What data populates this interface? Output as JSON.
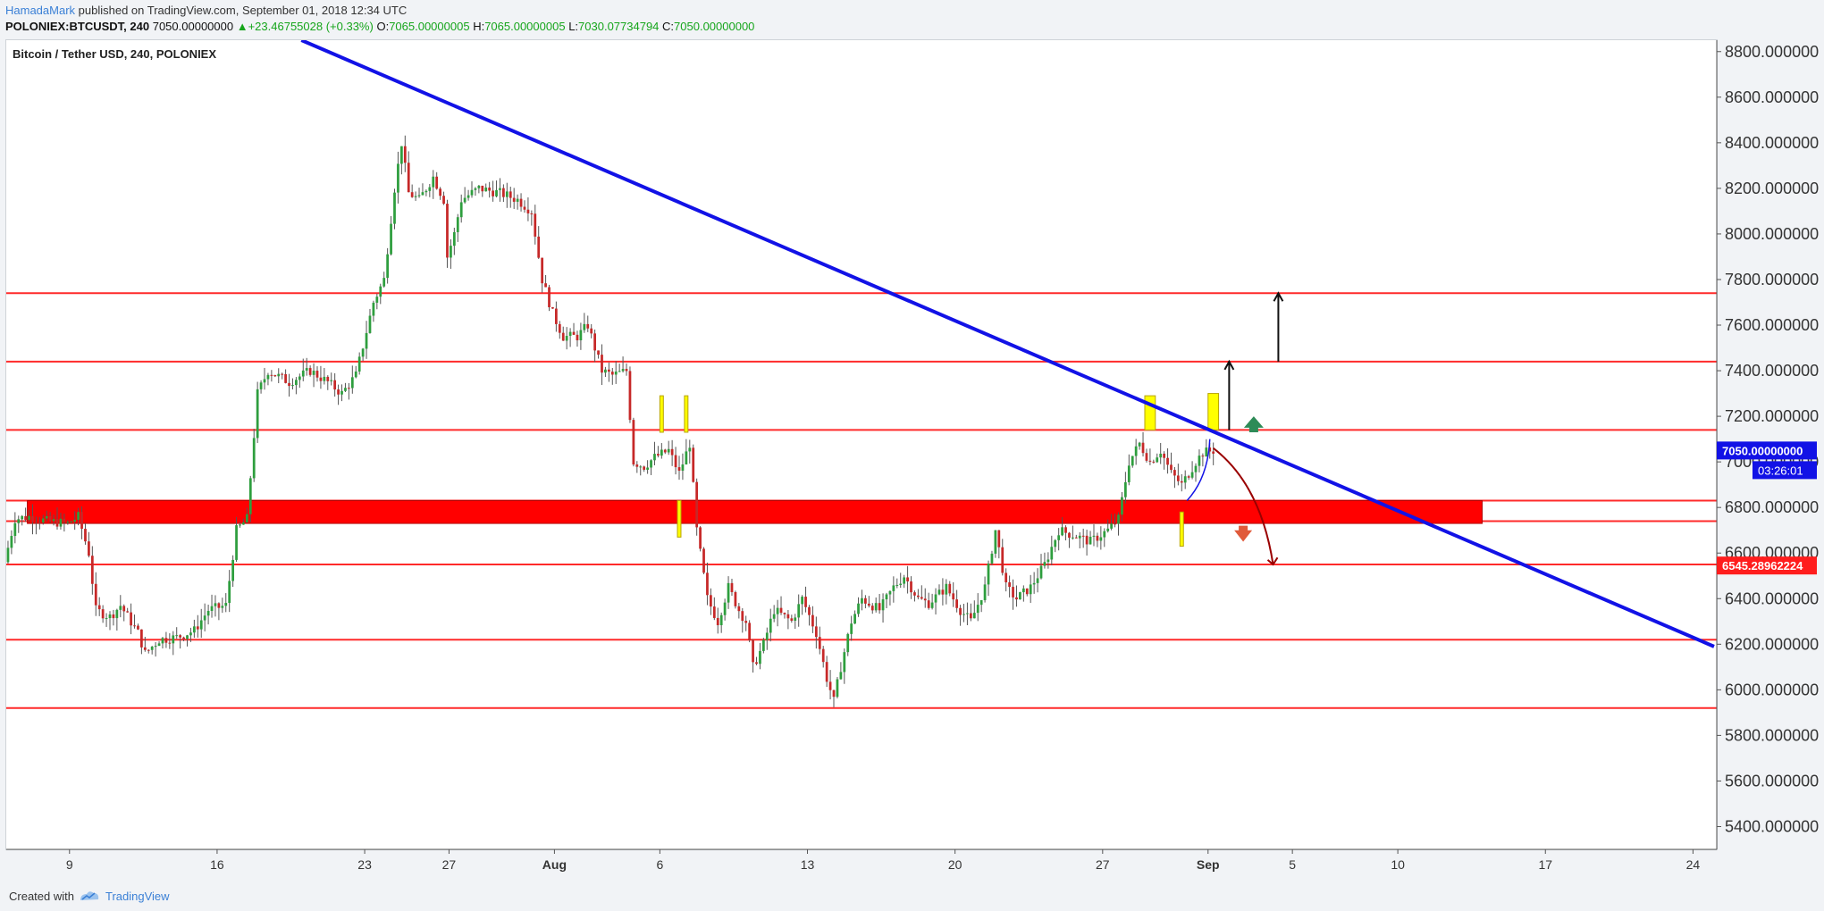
{
  "header": {
    "author": "HamadaMark",
    "published_text": " published on TradingView.com, September 01, 2018 12:34 UTC",
    "symbol_line": "POLONIEX:BTCUSDT, 240",
    "last": "7050.00000000",
    "change": "+23.46755028 (+0.33%)",
    "o_label": "O:",
    "o_value": "7065.00000005",
    "h_label": "H:",
    "h_value": "7065.00000005",
    "l_label": "L:",
    "l_value": "7030.07734794",
    "c_label": "C:",
    "c_value": "7050.00000000",
    "colors": {
      "author": "#3b80d6",
      "up": "#16a51b"
    }
  },
  "footer": {
    "created_with": "Created with",
    "brand": "TradingView"
  },
  "chart_data": {
    "type": "candlestick",
    "title": "Bitcoin / Tether USD, 240, POLONIEX",
    "y_axis": {
      "range": [
        5300,
        8850
      ],
      "ticks": [
        5400,
        5600,
        5800,
        6000,
        6200,
        6400,
        6600,
        6800,
        7000,
        7200,
        7400,
        7600,
        7800,
        8000,
        8200,
        8400,
        8600,
        8800
      ],
      "tick_labels": [
        "5400.000000",
        "5600.000000",
        "5800.000000",
        "6000.000000",
        "6200.000000",
        "6400.000000",
        "6600.000000",
        "6800.000000",
        "7000.000000",
        "7200.000000",
        "7400.000000",
        "7600.000000",
        "7800.000000",
        "8000.000000",
        "8200.000000",
        "8400.000000",
        "8600.000000",
        "8800.000000"
      ],
      "side": "right"
    },
    "x_axis": {
      "range": [
        "2018-07-06",
        "2018-09-25"
      ],
      "ticks": [
        {
          "date": "2018-07-09",
          "label": "9"
        },
        {
          "date": "2018-07-16",
          "label": "16"
        },
        {
          "date": "2018-07-23",
          "label": "23"
        },
        {
          "date": "2018-07-27",
          "label": "27"
        },
        {
          "date": "2018-08-01",
          "label": "Aug"
        },
        {
          "date": "2018-08-06",
          "label": "6"
        },
        {
          "date": "2018-08-13",
          "label": "13"
        },
        {
          "date": "2018-08-20",
          "label": "20"
        },
        {
          "date": "2018-08-27",
          "label": "27"
        },
        {
          "date": "2018-09-01",
          "label": "Sep"
        },
        {
          "date": "2018-09-05",
          "label": "5"
        },
        {
          "date": "2018-09-10",
          "label": "10"
        },
        {
          "date": "2018-09-17",
          "label": "17"
        },
        {
          "date": "2018-09-24",
          "label": "24"
        }
      ]
    },
    "price_path": [
      [
        "2018-07-06T00:00",
        6560
      ],
      [
        "2018-07-06T12:00",
        6750
      ],
      [
        "2018-07-07T04:00",
        6760
      ],
      [
        "2018-07-08T00:00",
        6740
      ],
      [
        "2018-07-09T00:00",
        6730
      ],
      [
        "2018-07-09T12:00",
        6760
      ],
      [
        "2018-07-10T00:00",
        6600
      ],
      [
        "2018-07-10T08:00",
        6350
      ],
      [
        "2018-07-11T00:00",
        6320
      ],
      [
        "2018-07-11T12:00",
        6370
      ],
      [
        "2018-07-12T08:00",
        6250
      ],
      [
        "2018-07-12T16:00",
        6160
      ],
      [
        "2018-07-13T08:00",
        6220
      ],
      [
        "2018-07-14T04:00",
        6230
      ],
      [
        "2018-07-15T00:00",
        6260
      ],
      [
        "2018-07-15T16:00",
        6350
      ],
      [
        "2018-07-16T12:00",
        6370
      ],
      [
        "2018-07-17T00:00",
        6700
      ],
      [
        "2018-07-17T12:00",
        6750
      ],
      [
        "2018-07-18T00:00",
        7300
      ],
      [
        "2018-07-18T12:00",
        7400
      ],
      [
        "2018-07-19T12:00",
        7350
      ],
      [
        "2018-07-20T12:00",
        7400
      ],
      [
        "2018-07-21T08:00",
        7350
      ],
      [
        "2018-07-22T00:00",
        7300
      ],
      [
        "2018-07-22T16:00",
        7380
      ],
      [
        "2018-07-23T12:00",
        7700
      ],
      [
        "2018-07-24T00:00",
        7800
      ],
      [
        "2018-07-24T12:00",
        8200
      ],
      [
        "2018-07-24T20:00",
        8400
      ],
      [
        "2018-07-25T04:00",
        8180
      ],
      [
        "2018-07-25T16:00",
        8150
      ],
      [
        "2018-07-26T08:00",
        8250
      ],
      [
        "2018-07-26T20:00",
        8150
      ],
      [
        "2018-07-27T00:00",
        7900
      ],
      [
        "2018-07-27T08:00",
        8000
      ],
      [
        "2018-07-27T16:00",
        8150
      ],
      [
        "2018-07-28T12:00",
        8200
      ],
      [
        "2018-07-29T12:00",
        8180
      ],
      [
        "2018-07-30T08:00",
        8150
      ],
      [
        "2018-07-31T00:00",
        8100
      ],
      [
        "2018-07-31T12:00",
        7800
      ],
      [
        "2018-08-01T00:00",
        7650
      ],
      [
        "2018-08-01T12:00",
        7550
      ],
      [
        "2018-08-02T04:00",
        7550
      ],
      [
        "2018-08-02T16:00",
        7600
      ],
      [
        "2018-08-03T08:00",
        7400
      ],
      [
        "2018-08-03T20:00",
        7380
      ],
      [
        "2018-08-04T12:00",
        7400
      ],
      [
        "2018-08-04T20:00",
        7000
      ],
      [
        "2018-08-05T08:00",
        6980
      ],
      [
        "2018-08-05T20:00",
        7020
      ],
      [
        "2018-08-06T12:00",
        7050
      ],
      [
        "2018-08-07T00:00",
        6950
      ],
      [
        "2018-08-07T12:00",
        7080
      ],
      [
        "2018-08-07T20:00",
        6700
      ],
      [
        "2018-08-08T08:00",
        6400
      ],
      [
        "2018-08-08T20:00",
        6300
      ],
      [
        "2018-08-09T08:00",
        6450
      ],
      [
        "2018-08-09T20:00",
        6350
      ],
      [
        "2018-08-10T04:00",
        6300
      ],
      [
        "2018-08-10T12:00",
        6100
      ],
      [
        "2018-08-11T00:00",
        6200
      ],
      [
        "2018-08-11T12:00",
        6350
      ],
      [
        "2018-08-12T08:00",
        6300
      ],
      [
        "2018-08-12T20:00",
        6400
      ],
      [
        "2018-08-13T12:00",
        6250
      ],
      [
        "2018-08-14T00:00",
        6050
      ],
      [
        "2018-08-14T08:00",
        5950
      ],
      [
        "2018-08-14T16:00",
        6100
      ],
      [
        "2018-08-15T04:00",
        6300
      ],
      [
        "2018-08-15T16:00",
        6400
      ],
      [
        "2018-08-16T12:00",
        6350
      ],
      [
        "2018-08-17T04:00",
        6450
      ],
      [
        "2018-08-17T16:00",
        6500
      ],
      [
        "2018-08-18T08:00",
        6400
      ],
      [
        "2018-08-18T20:00",
        6380
      ],
      [
        "2018-08-19T16:00",
        6450
      ],
      [
        "2018-08-20T08:00",
        6350
      ],
      [
        "2018-08-20T20:00",
        6300
      ],
      [
        "2018-08-21T12:00",
        6450
      ],
      [
        "2018-08-22T00:00",
        6700
      ],
      [
        "2018-08-22T12:00",
        6450
      ],
      [
        "2018-08-23T00:00",
        6400
      ],
      [
        "2018-08-23T16:00",
        6450
      ],
      [
        "2018-08-24T08:00",
        6550
      ],
      [
        "2018-08-25T00:00",
        6700
      ],
      [
        "2018-08-25T16:00",
        6680
      ],
      [
        "2018-08-26T12:00",
        6650
      ],
      [
        "2018-08-27T08:00",
        6700
      ],
      [
        "2018-08-27T20:00",
        6750
      ],
      [
        "2018-08-28T08:00",
        7000
      ],
      [
        "2018-08-28T20:00",
        7080
      ],
      [
        "2018-08-29T08:00",
        7000
      ],
      [
        "2018-08-29T20:00",
        7050
      ],
      [
        "2018-08-30T08:00",
        6950
      ],
      [
        "2018-08-30T20:00",
        6900
      ],
      [
        "2018-08-31T04:00",
        6950
      ],
      [
        "2018-08-31T12:00",
        7000
      ],
      [
        "2018-08-31T20:00",
        7040
      ],
      [
        "2018-09-01T08:00",
        7050
      ]
    ],
    "horizontal_levels": [
      5920,
      6220,
      6550,
      6740,
      6830,
      7140,
      7440,
      7740
    ],
    "support_zone": {
      "start": "2018-07-07",
      "end": "2018-09-14",
      "low": 6730,
      "high": 6830
    },
    "trendline": {
      "start": [
        "2018-07-20",
        8850
      ],
      "end": [
        "2018-09-25",
        6190
      ]
    },
    "price_labels": [
      {
        "value": 7050,
        "text": "7050.00000000",
        "color": "#1212e6"
      },
      {
        "value": 6545.28962224,
        "text": "6545.28962224",
        "color": "#ff1d1d"
      }
    ],
    "countdown": "03:26:01",
    "colors": {
      "up": "#26a69a",
      "down": "#c62828",
      "level": "#ff2a2a",
      "trend": "#1212e6",
      "highlight": "#ffff00"
    }
  }
}
